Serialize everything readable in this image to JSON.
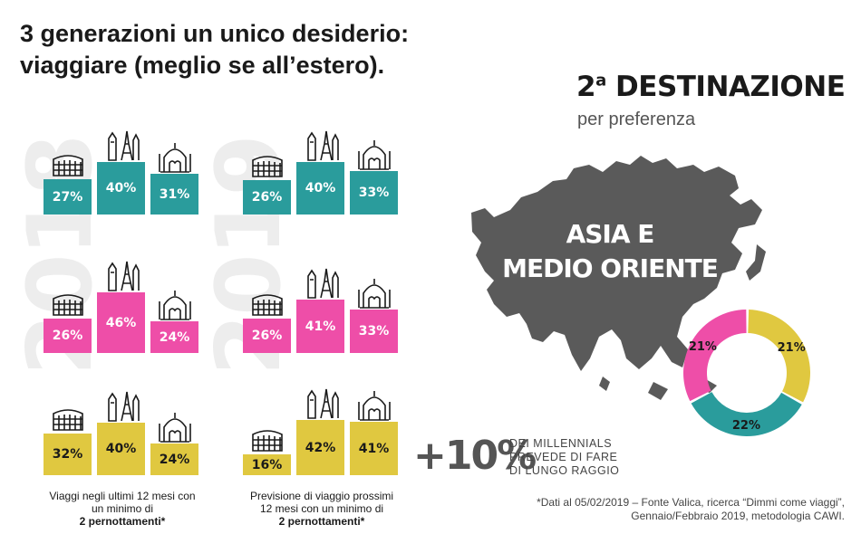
{
  "title_line1": "3 generazioni un unico desiderio:",
  "title_line2": "viaggiare (meglio se all’estero).",
  "colors": {
    "teal": "#2a9c9c",
    "pink": "#ee4ea8",
    "yellow": "#e0c840",
    "gray": "#5a5a5a"
  },
  "icons": [
    "colosseum-icon",
    "eiffel-big-ben-icon",
    "taj-mahal-icon"
  ],
  "panel_2018": {
    "year": "2018",
    "rows": [
      {
        "generation": "teal",
        "values": [
          "27%",
          "40%",
          "31%"
        ]
      },
      {
        "generation": "pink",
        "values": [
          "26%",
          "46%",
          "24%"
        ]
      },
      {
        "generation": "yellow",
        "values": [
          "32%",
          "40%",
          "24%"
        ]
      }
    ],
    "caption_line1": "Viaggi negli ultimi 12 mesi con",
    "caption_line2": "un minimo di",
    "caption_bold": "2 pernottamenti*"
  },
  "panel_2019": {
    "year": "2019",
    "rows": [
      {
        "generation": "teal",
        "values": [
          "26%",
          "40%",
          "33%"
        ]
      },
      {
        "generation": "pink",
        "values": [
          "26%",
          "41%",
          "33%"
        ]
      },
      {
        "generation": "yellow",
        "values": [
          "16%",
          "42%",
          "41%"
        ]
      }
    ],
    "caption_line1": "Previsione di viaggio prossimi",
    "caption_line2": "12 mesi con un minimo di",
    "caption_bold": "2 pernottamenti*"
  },
  "destination": {
    "rank": "2",
    "ordinal": "a",
    "heading": "DESTINAZIONE",
    "subheading": "per preferenza",
    "name_line1": "ASIA E",
    "name_line2": "MEDIO ORIENTE"
  },
  "donut": [
    {
      "label": "21%",
      "value": 21,
      "color": "#e0c840"
    },
    {
      "label": "22%",
      "value": 22,
      "color": "#2a9c9c"
    },
    {
      "label": "21%",
      "value": 21,
      "color": "#ee4ea8"
    }
  ],
  "millennials": {
    "stat": "+10%",
    "line1": "DEI MILLENNIALS",
    "line2": "PREVEDE DI FARE",
    "line3": "DI LUNGO RAGGIO"
  },
  "footnote_line1": "*Dati al 05/02/2019 – Fonte Valica, ricerca “Dimmi come viaggi”,",
  "footnote_line2": "Gennaio/Febbraio 2019, metodologia CAWI."
}
